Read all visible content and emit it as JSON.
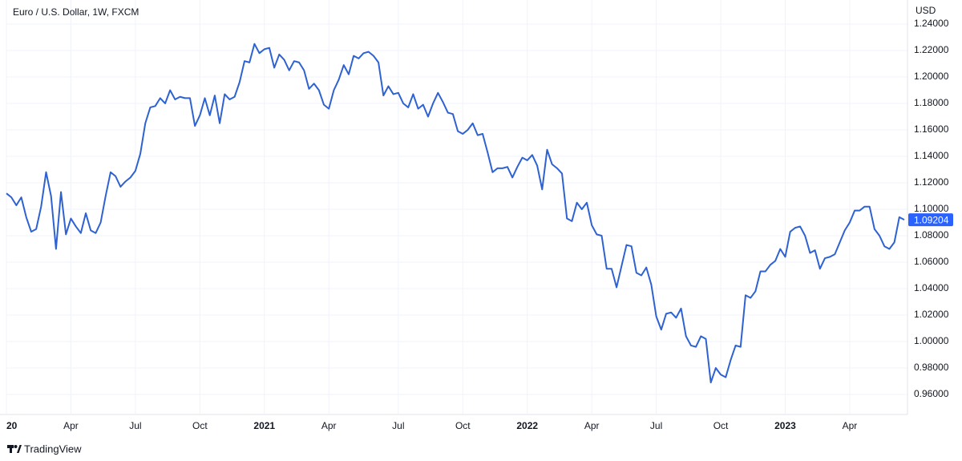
{
  "chart_data": {
    "type": "line",
    "title": "Euro / U.S. Dollar, 1W, FXCM",
    "y_axis_label": "USD",
    "brand": "TradingView",
    "last_price_label": "1.09204",
    "color": "#2e62d1",
    "last_price_color": "#2962ff",
    "grid": true,
    "ylim": [
      0.94485,
      1.25818
    ],
    "yticks": [
      {
        "value": 1.24,
        "label": "1.24000"
      },
      {
        "value": 1.22,
        "label": "1.22000"
      },
      {
        "value": 1.2,
        "label": "1.20000"
      },
      {
        "value": 1.18,
        "label": "1.18000"
      },
      {
        "value": 1.16,
        "label": "1.16000"
      },
      {
        "value": 1.14,
        "label": "1.14000"
      },
      {
        "value": 1.12,
        "label": "1.12000"
      },
      {
        "value": 1.1,
        "label": "1.10000"
      },
      {
        "value": 1.08,
        "label": "1.08000"
      },
      {
        "value": 1.06,
        "label": "1.06000"
      },
      {
        "value": 1.04,
        "label": "1.04000"
      },
      {
        "value": 1.02,
        "label": "1.02000"
      },
      {
        "value": 1.0,
        "label": "1.00000"
      },
      {
        "value": 0.98,
        "label": "0.98000"
      },
      {
        "value": 0.96,
        "label": "0.96000"
      }
    ],
    "categories": [
      "20",
      null,
      null,
      null,
      null,
      null,
      null,
      null,
      null,
      null,
      null,
      null,
      null,
      "Apr",
      null,
      null,
      null,
      null,
      null,
      null,
      null,
      null,
      null,
      null,
      null,
      null,
      "Jul",
      null,
      null,
      null,
      null,
      null,
      null,
      null,
      null,
      null,
      null,
      null,
      null,
      "Oct",
      null,
      null,
      null,
      null,
      null,
      null,
      null,
      null,
      null,
      null,
      null,
      null,
      "2021",
      null,
      null,
      null,
      null,
      null,
      null,
      null,
      null,
      null,
      null,
      null,
      null,
      "Apr",
      null,
      null,
      null,
      null,
      null,
      null,
      null,
      null,
      null,
      null,
      null,
      null,
      null,
      "Jul",
      null,
      null,
      null,
      null,
      null,
      null,
      null,
      null,
      null,
      null,
      null,
      null,
      "Oct",
      null,
      null,
      null,
      null,
      null,
      null,
      null,
      null,
      null,
      null,
      null,
      null,
      "2022",
      null,
      null,
      null,
      null,
      null,
      null,
      null,
      null,
      null,
      null,
      null,
      null,
      "Apr",
      null,
      null,
      null,
      null,
      null,
      null,
      null,
      null,
      null,
      null,
      null,
      null,
      "Jul",
      null,
      null,
      null,
      null,
      null,
      null,
      null,
      null,
      null,
      null,
      null,
      null,
      "Oct",
      null,
      null,
      null,
      null,
      null,
      null,
      null,
      null,
      null,
      null,
      null,
      null,
      "2023",
      null,
      null,
      null,
      null,
      null,
      null,
      null,
      null,
      null,
      null,
      null,
      null,
      "Apr",
      null,
      null,
      null,
      null,
      null,
      null,
      null,
      null,
      null,
      null,
      null
    ],
    "values": [
      1.112,
      1.109,
      1.103,
      1.109,
      1.094,
      1.083,
      1.085,
      1.102,
      1.128,
      1.11,
      1.07,
      1.113,
      1.081,
      1.093,
      1.087,
      1.082,
      1.097,
      1.084,
      1.082,
      1.09,
      1.11,
      1.128,
      1.125,
      1.117,
      1.121,
      1.124,
      1.129,
      1.142,
      1.165,
      1.177,
      1.178,
      1.184,
      1.18,
      1.19,
      1.183,
      1.185,
      1.184,
      1.184,
      1.163,
      1.171,
      1.184,
      1.171,
      1.186,
      1.165,
      1.187,
      1.183,
      1.185,
      1.196,
      1.212,
      1.211,
      1.225,
      1.218,
      1.221,
      1.222,
      1.207,
      1.217,
      1.213,
      1.205,
      1.212,
      1.211,
      1.205,
      1.191,
      1.195,
      1.19,
      1.179,
      1.176,
      1.19,
      1.198,
      1.209,
      1.202,
      1.216,
      1.214,
      1.218,
      1.219,
      1.216,
      1.211,
      1.186,
      1.193,
      1.187,
      1.188,
      1.18,
      1.177,
      1.187,
      1.176,
      1.179,
      1.17,
      1.18,
      1.188,
      1.181,
      1.173,
      1.172,
      1.159,
      1.157,
      1.16,
      1.165,
      1.156,
      1.157,
      1.143,
      1.128,
      1.131,
      1.131,
      1.132,
      1.124,
      1.132,
      1.139,
      1.137,
      1.141,
      1.133,
      1.115,
      1.145,
      1.134,
      1.131,
      1.127,
      1.093,
      1.091,
      1.105,
      1.1,
      1.105,
      1.088,
      1.081,
      1.08,
      1.055,
      1.055,
      1.041,
      1.057,
      1.073,
      1.072,
      1.052,
      1.05,
      1.056,
      1.043,
      1.019,
      1.009,
      1.021,
      1.022,
      1.018,
      1.025,
      1.004,
      0.997,
      0.996,
      1.004,
      1.002,
      0.969,
      0.98,
      0.975,
      0.973,
      0.986,
      0.997,
      0.996,
      1.035,
      1.033,
      1.038,
      1.053,
      1.053,
      1.058,
      1.061,
      1.07,
      1.064,
      1.083,
      1.086,
      1.087,
      1.08,
      1.067,
      1.069,
      1.055,
      1.063,
      1.064,
      1.066,
      1.075,
      1.084,
      1.09,
      1.099,
      1.099,
      1.102,
      1.102,
      1.085,
      1.08,
      1.072,
      1.07,
      1.075,
      1.094,
      1.09204
    ]
  }
}
